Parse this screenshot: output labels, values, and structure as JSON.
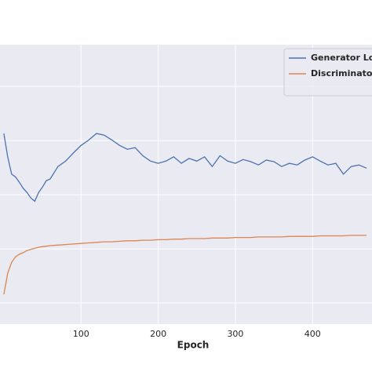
{
  "chart_data": {
    "type": "line",
    "x_label": "Epoch",
    "x": [
      0,
      5,
      10,
      15,
      20,
      25,
      30,
      35,
      40,
      45,
      50,
      55,
      60,
      70,
      80,
      90,
      100,
      110,
      120,
      130,
      140,
      150,
      160,
      170,
      180,
      190,
      200,
      210,
      220,
      230,
      240,
      250,
      260,
      270,
      280,
      290,
      300,
      310,
      320,
      330,
      340,
      350,
      360,
      370,
      380,
      390,
      400,
      410,
      420,
      430,
      440,
      450,
      460,
      470
    ],
    "series": [
      {
        "name": "Generator Loss",
        "color": "#4c72b0",
        "values": [
          3.13,
          2.7,
          2.38,
          2.33,
          2.23,
          2.12,
          2.04,
          1.94,
          1.88,
          2.04,
          2.14,
          2.26,
          2.29,
          2.52,
          2.62,
          2.77,
          2.91,
          3.01,
          3.13,
          3.1,
          3.01,
          2.91,
          2.84,
          2.87,
          2.72,
          2.62,
          2.58,
          2.62,
          2.7,
          2.58,
          2.67,
          2.62,
          2.7,
          2.52,
          2.72,
          2.62,
          2.58,
          2.65,
          2.61,
          2.55,
          2.64,
          2.61,
          2.52,
          2.58,
          2.55,
          2.64,
          2.7,
          2.62,
          2.55,
          2.58,
          2.38,
          2.52,
          2.55,
          2.49
        ]
      },
      {
        "name": "Discriminator Loss",
        "color": "#dd8452",
        "values": [
          0.16,
          0.55,
          0.75,
          0.85,
          0.9,
          0.93,
          0.97,
          0.99,
          1.01,
          1.03,
          1.04,
          1.05,
          1.06,
          1.07,
          1.08,
          1.09,
          1.1,
          1.11,
          1.12,
          1.13,
          1.13,
          1.14,
          1.15,
          1.15,
          1.16,
          1.16,
          1.17,
          1.17,
          1.18,
          1.18,
          1.19,
          1.19,
          1.19,
          1.2,
          1.2,
          1.2,
          1.21,
          1.21,
          1.21,
          1.22,
          1.22,
          1.22,
          1.22,
          1.23,
          1.23,
          1.23,
          1.23,
          1.24,
          1.24,
          1.24,
          1.24,
          1.25,
          1.25,
          1.25
        ]
      }
    ],
    "xlim": [
      -5,
      477
    ],
    "xticks": [
      100,
      200,
      300,
      400
    ],
    "ylim": [
      -0.39,
      4.77
    ],
    "yticks": [
      0,
      1,
      2,
      3,
      4
    ],
    "grid": true,
    "legend": "upper right"
  }
}
